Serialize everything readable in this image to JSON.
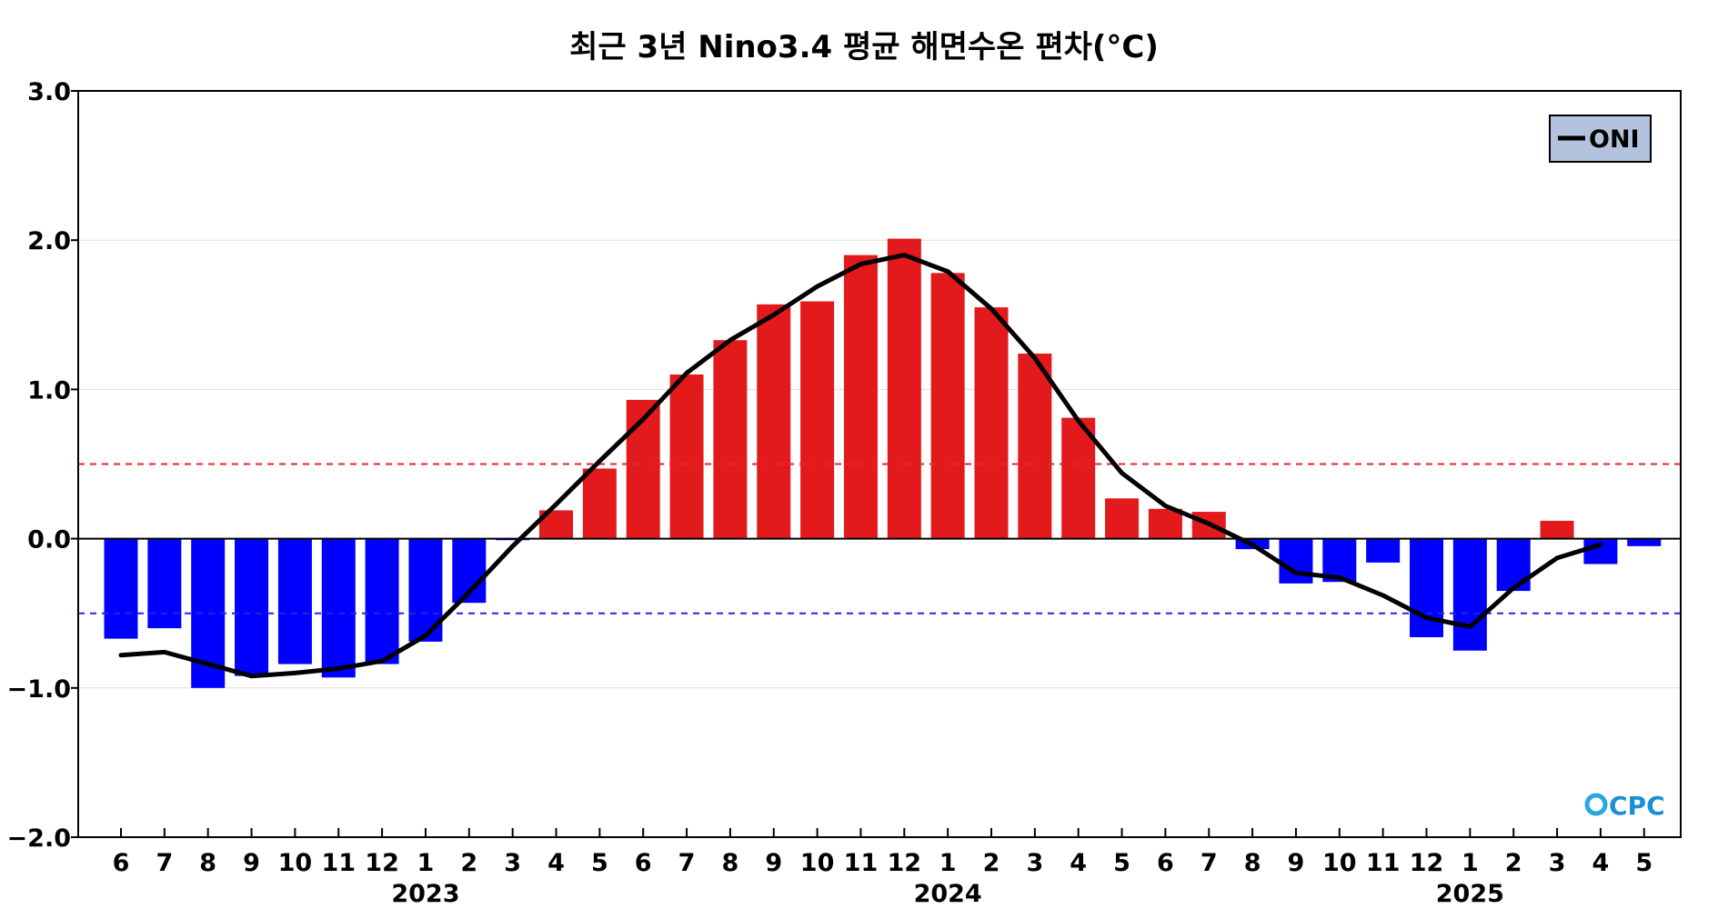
{
  "chart_data": {
    "type": "bar",
    "title": "최근 3년 Nino3.4 평균 해면수온 편차(°C)",
    "xlabel": "",
    "ylabel": "",
    "ylim": [
      -2.0,
      3.0
    ],
    "y_ticks": [
      "3.0",
      "2.0",
      "1.0",
      "0.0",
      "−1.0",
      "−2.0"
    ],
    "y_tick_values": [
      3.0,
      2.0,
      1.0,
      0.0,
      -1.0,
      -2.0
    ],
    "categories": [
      "6",
      "7",
      "8",
      "9",
      "10",
      "11",
      "12",
      "1",
      "2",
      "3",
      "4",
      "5",
      "6",
      "7",
      "8",
      "9",
      "10",
      "11",
      "12",
      "1",
      "2",
      "3",
      "4",
      "5",
      "6",
      "7",
      "8",
      "9",
      "10",
      "11",
      "12",
      "1",
      "2",
      "3",
      "4",
      "5"
    ],
    "years": [
      {
        "label": "2023",
        "center_index": 7
      },
      {
        "label": "2024",
        "center_index": 19
      },
      {
        "label": "2025",
        "center_index": 31
      }
    ],
    "series": [
      {
        "type": "bar",
        "values": [
          -0.67,
          -0.6,
          -1.0,
          -0.92,
          -0.84,
          -0.93,
          -0.84,
          -0.69,
          -0.43,
          -0.01,
          0.19,
          0.47,
          0.93,
          1.1,
          1.33,
          1.57,
          1.59,
          1.9,
          2.01,
          1.78,
          1.55,
          1.24,
          0.81,
          0.27,
          0.2,
          0.18,
          -0.07,
          -0.3,
          -0.29,
          -0.16,
          -0.66,
          -0.75,
          -0.35,
          0.12,
          -0.17,
          -0.05
        ]
      },
      {
        "name": "ONI",
        "type": "line",
        "values": [
          -0.78,
          -0.76,
          -0.84,
          -0.92,
          -0.9,
          -0.87,
          -0.82,
          -0.65,
          -0.36,
          -0.05,
          0.23,
          0.52,
          0.8,
          1.11,
          1.33,
          1.5,
          1.69,
          1.84,
          1.9,
          1.79,
          1.54,
          1.21,
          0.79,
          0.44,
          0.22,
          0.1,
          -0.04,
          -0.23,
          -0.26,
          -0.38,
          -0.53,
          -0.59,
          -0.33,
          -0.13,
          -0.04,
          null
        ]
      }
    ],
    "reference_lines": [
      {
        "value": 0.5,
        "style": "dashed",
        "color": "#ee2222"
      },
      {
        "value": -0.5,
        "style": "dashed",
        "color": "#2222ee"
      },
      {
        "value": 0.0,
        "style": "solid",
        "color": "#000000"
      }
    ],
    "legend": {
      "placement": "top-right",
      "entries": [
        "ONI"
      ]
    },
    "grid": true,
    "colors": {
      "positive_bar": "#e31a1c",
      "negative_bar": "#0000ff",
      "line": "#000000",
      "legend_bg": "#b3c3dd",
      "grid": "#dddddd"
    },
    "logo_text": "CPC"
  }
}
